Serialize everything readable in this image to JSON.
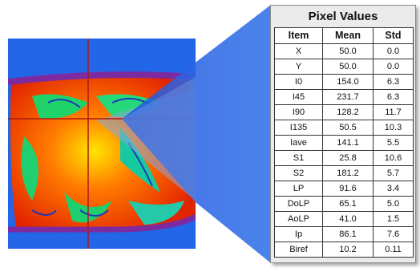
{
  "colors": {
    "connector": "#2f66e4",
    "crosshair": "#b01818",
    "panel_bg": "#ebebeb",
    "frame_rim": "#7d2aa0"
  },
  "panel": {
    "title": "Pixel Values",
    "columns": [
      "Item",
      "Mean",
      "Std"
    ],
    "rows": [
      {
        "item": "X",
        "mean": "50.0",
        "std": "0.0"
      },
      {
        "item": "Y",
        "mean": "50.0",
        "std": "0.0"
      },
      {
        "item": "I0",
        "mean": "154.0",
        "std": "6.3"
      },
      {
        "item": "I45",
        "mean": "231.7",
        "std": "6.3"
      },
      {
        "item": "I90",
        "mean": "128.2",
        "std": "11.7"
      },
      {
        "item": "I135",
        "mean": "50.5",
        "std": "10.3"
      },
      {
        "item": "Iave",
        "mean": "141.1",
        "std": "5.5"
      },
      {
        "item": "S1",
        "mean": "25.8",
        "std": "10.6"
      },
      {
        "item": "S2",
        "mean": "181.2",
        "std": "5.7"
      },
      {
        "item": "LP",
        "mean": "91.6",
        "std": "3.4"
      },
      {
        "item": "DoLP",
        "mean": "65.1",
        "std": "5.0"
      },
      {
        "item": "AoLP",
        "mean": "41.0",
        "std": "1.5"
      },
      {
        "item": "Ip",
        "mean": "86.1",
        "std": "7.6"
      },
      {
        "item": "Biref",
        "mean": "10.2",
        "std": "0.11"
      }
    ]
  }
}
